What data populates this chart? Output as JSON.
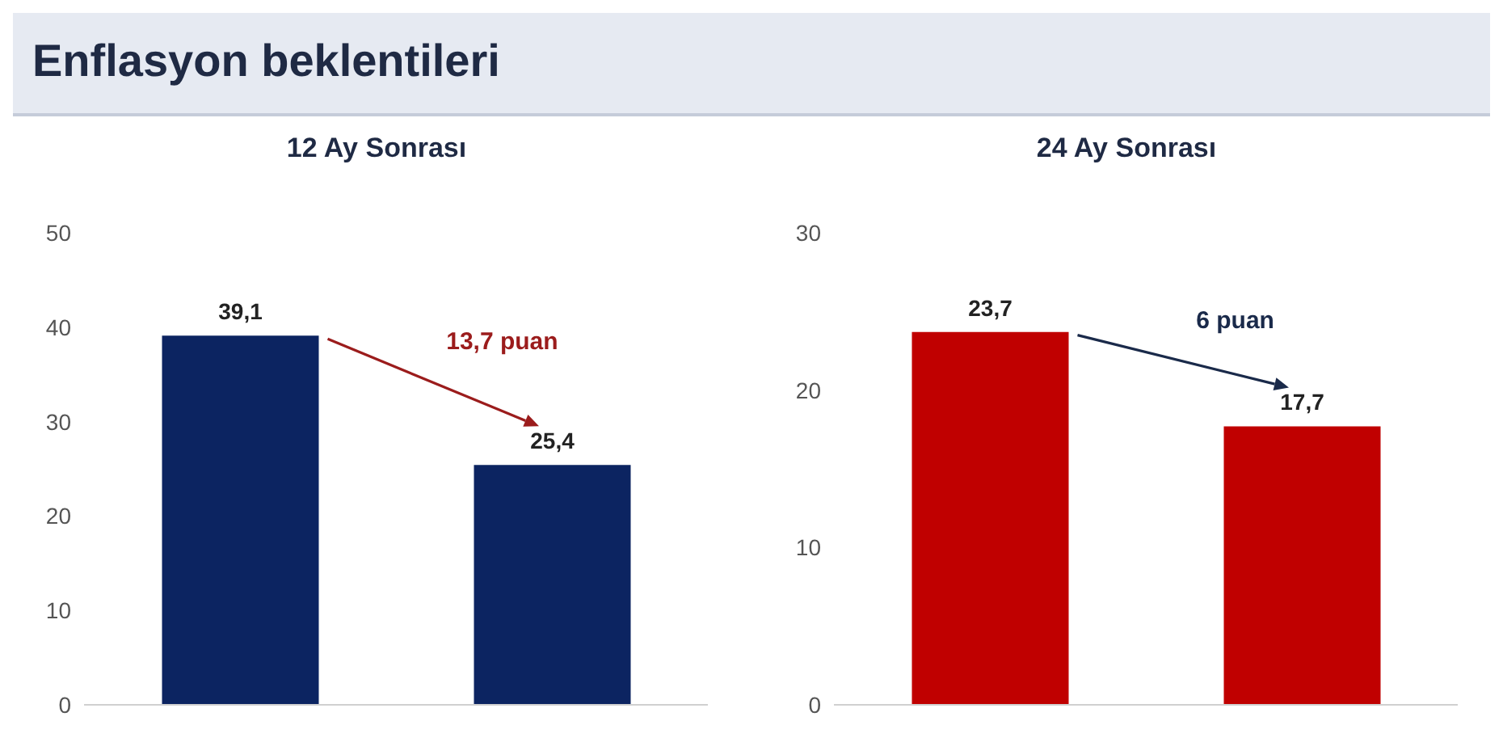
{
  "chart_data": [
    {
      "type": "bar",
      "title": "Enflasyon beklentileri",
      "subtitle": "12 Ay Sonrası",
      "categories": [
        null,
        null
      ],
      "values": [
        39.1,
        25.4
      ],
      "color": "#0c2461",
      "value_labels": [
        "39,1",
        "25,4"
      ],
      "ylim": [
        0,
        50
      ],
      "yticks": [
        0,
        10,
        20,
        30,
        40,
        50
      ],
      "tick_labels": "y",
      "grid": false,
      "legend": false,
      "annotations": [
        "13,7 puan"
      ]
    },
    {
      "type": "bar",
      "subtitle": "24 Ay Sonrası",
      "categories": [
        null,
        null
      ],
      "values": [
        23.7,
        17.7
      ],
      "color": "#c00000",
      "value_labels": [
        "23,7",
        "17,7"
      ],
      "ylim": [
        0,
        30
      ],
      "yticks": [
        0,
        10,
        20,
        30
      ],
      "tick_labels": "y",
      "grid": false,
      "legend": false,
      "annotations": [
        "6 puan"
      ]
    }
  ]
}
